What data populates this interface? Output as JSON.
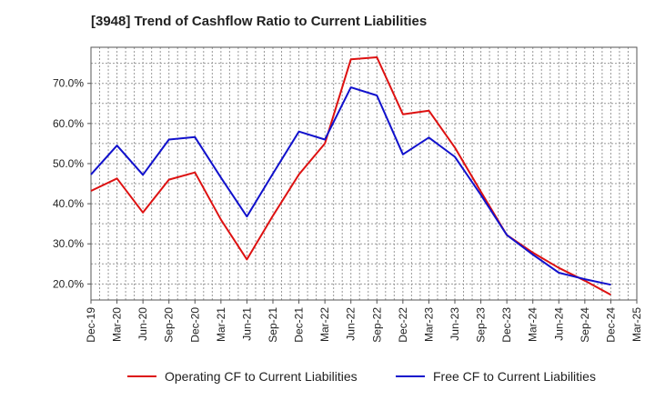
{
  "chart_data": {
    "type": "line",
    "title": "[3948]  Trend of Cashflow Ratio to Current Liabilities",
    "x": [
      "Dec-19",
      "Mar-20",
      "Jun-20",
      "Sep-20",
      "Dec-20",
      "Mar-21",
      "Jun-21",
      "Sep-21",
      "Dec-21",
      "Mar-22",
      "Jun-22",
      "Sep-22",
      "Dec-22",
      "Mar-23",
      "Jun-23",
      "Sep-23",
      "Dec-23",
      "Mar-24",
      "Jun-24",
      "Sep-24",
      "Dec-24"
    ],
    "x_ticks": [
      "Dec-19",
      "Mar-20",
      "Jun-20",
      "Sep-20",
      "Dec-20",
      "Mar-21",
      "Jun-21",
      "Sep-21",
      "Dec-21",
      "Mar-22",
      "Jun-22",
      "Sep-22",
      "Dec-22",
      "Mar-23",
      "Jun-23",
      "Sep-23",
      "Dec-23",
      "Mar-24",
      "Jun-24",
      "Sep-24",
      "Dec-24",
      "Mar-25"
    ],
    "y_ticks": [
      "20.0%",
      "30.0%",
      "40.0%",
      "50.0%",
      "60.0%",
      "70.0%"
    ],
    "ylim": [
      16,
      79
    ],
    "grid": true,
    "legend_position": "bottom",
    "series": [
      {
        "name": "Operating CF to Current Liabilities",
        "color": "#dd1111",
        "values": [
          43.2,
          46.3,
          37.8,
          46.0,
          47.8,
          36.0,
          26.1,
          37.0,
          47.3,
          55.0,
          76.0,
          76.5,
          62.3,
          63.2,
          54.0,
          43.0,
          32.2,
          27.8,
          24.0,
          20.8,
          17.3
        ]
      },
      {
        "name": "Free CF to Current Liabilities",
        "color": "#1111cc",
        "values": [
          47.3,
          54.5,
          47.2,
          56.0,
          56.6,
          46.5,
          36.8,
          47.5,
          58.0,
          56.0,
          69.0,
          67.0,
          52.3,
          56.5,
          51.7,
          42.2,
          32.2,
          27.3,
          22.8,
          21.2,
          19.8
        ]
      }
    ]
  }
}
